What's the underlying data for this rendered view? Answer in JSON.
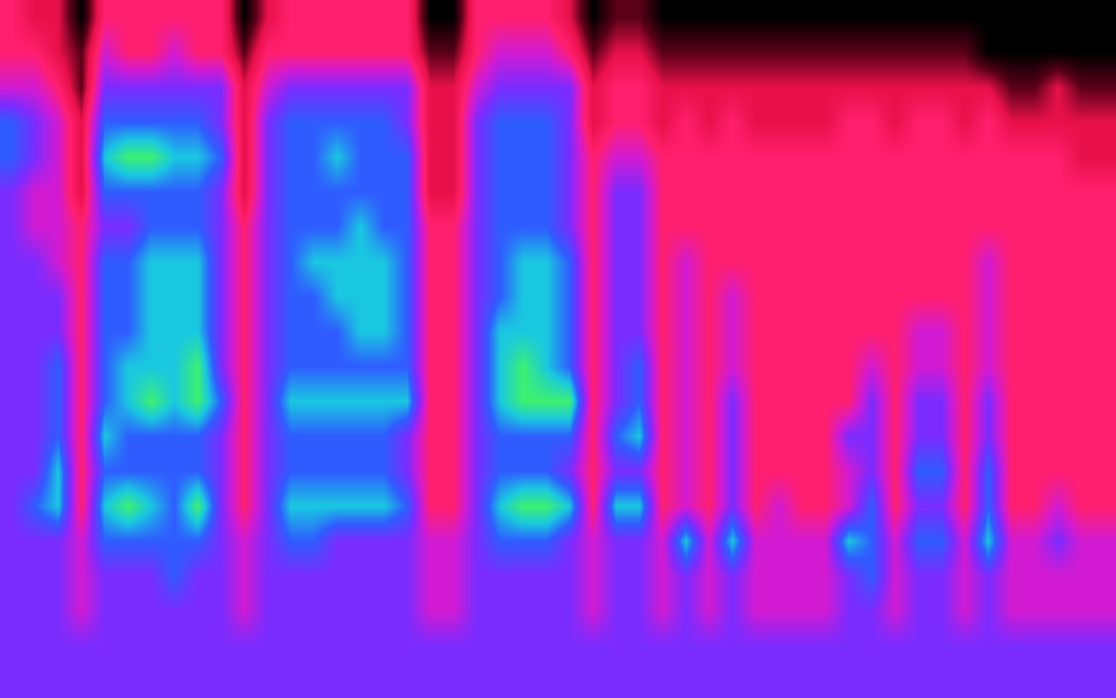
{
  "chart_data": {
    "type": "heatmap",
    "tick_labels": false,
    "grid": false,
    "zlim": [
      0,
      9
    ],
    "z": [
      [
        3,
        3,
        4,
        6,
        6,
        5,
        5,
        5,
        5,
        5,
        5,
        5,
        5,
        5,
        5,
        5,
        5,
        5,
        5,
        5
      ],
      [
        2,
        3,
        4,
        5,
        5,
        4,
        4,
        5,
        5,
        5,
        5,
        5,
        5,
        5,
        6,
        5,
        5,
        5,
        5,
        5
      ],
      [
        2,
        2,
        3,
        4,
        4,
        4,
        4,
        4,
        5,
        5,
        6,
        6,
        6,
        7,
        7,
        5,
        5,
        5,
        5,
        5
      ],
      [
        0,
        1,
        1,
        2,
        2,
        2,
        3,
        3,
        3,
        3,
        3,
        3,
        3,
        3,
        3,
        4,
        4,
        4,
        5,
        5
      ],
      [
        3,
        4,
        5,
        6,
        7,
        6,
        5,
        6,
        6,
        6,
        6,
        6,
        7,
        6,
        7,
        6,
        5,
        5,
        5,
        5
      ],
      [
        3,
        3,
        5,
        6,
        8,
        6,
        5,
        6,
        6,
        6,
        7,
        7,
        6,
        6,
        8,
        6,
        5,
        5,
        5,
        5
      ],
      [
        3,
        3,
        5,
        6,
        8,
        6,
        6,
        7,
        7,
        7,
        7,
        8,
        6,
        6,
        7,
        6,
        5,
        5,
        5,
        5
      ],
      [
        3,
        4,
        5,
        6,
        7,
        6,
        6,
        7,
        7,
        7,
        7,
        7,
        6,
        6,
        6,
        6,
        6,
        5,
        5,
        5
      ],
      [
        3,
        3,
        5,
        6,
        7,
        6,
        6,
        7,
        7,
        7,
        8,
        8,
        6,
        6,
        8,
        6,
        5,
        5,
        5,
        5
      ],
      [
        3,
        3,
        5,
        5,
        6,
        5,
        5,
        5,
        5,
        5,
        5,
        6,
        5,
        5,
        5,
        5,
        5,
        5,
        5,
        5
      ],
      [
        0,
        1,
        2,
        2,
        2,
        2,
        3,
        3,
        3,
        3,
        3,
        3,
        3,
        3,
        3,
        4,
        4,
        4,
        5,
        5
      ],
      [
        2,
        3,
        4,
        5,
        5,
        5,
        5,
        5,
        5,
        5,
        5,
        5,
        5,
        5,
        5,
        5,
        5,
        5,
        5,
        5
      ],
      [
        3,
        3,
        5,
        6,
        6,
        6,
        6,
        6,
        6,
        6,
        6,
        7,
        6,
        6,
        7,
        6,
        5,
        5,
        5,
        5
      ],
      [
        3,
        3,
        5,
        6,
        6,
        6,
        6,
        7,
        6,
        6,
        6,
        7,
        6,
        6,
        7,
        6,
        5,
        5,
        5,
        5
      ],
      [
        3,
        3,
        5,
        6,
        7,
        6,
        6,
        7,
        7,
        6,
        6,
        7,
        6,
        6,
        7,
        5,
        5,
        5,
        5,
        5
      ],
      [
        3,
        3,
        5,
        6,
        6,
        6,
        7,
        7,
        7,
        7,
        6,
        7,
        6,
        6,
        7,
        5,
        5,
        5,
        5,
        5
      ],
      [
        3,
        3,
        5,
        6,
        6,
        6,
        6,
        7,
        7,
        7,
        6,
        7,
        6,
        6,
        7,
        5,
        5,
        5,
        5,
        5
      ],
      [
        3,
        3,
        5,
        5,
        6,
        6,
        6,
        6,
        6,
        6,
        6,
        7,
        5,
        5,
        6,
        5,
        5,
        5,
        5,
        5
      ],
      [
        0,
        1,
        2,
        2,
        2,
        2,
        3,
        3,
        3,
        3,
        3,
        3,
        3,
        3,
        3,
        4,
        4,
        4,
        5,
        5
      ],
      [
        0,
        1,
        2,
        2,
        2,
        2,
        3,
        3,
        3,
        3,
        3,
        3,
        3,
        3,
        3,
        4,
        4,
        4,
        5,
        5
      ],
      [
        3,
        3,
        4,
        5,
        5,
        5,
        5,
        5,
        5,
        5,
        5,
        5,
        5,
        5,
        5,
        5,
        5,
        5,
        5,
        5
      ],
      [
        3,
        4,
        5,
        6,
        6,
        6,
        6,
        6,
        6,
        7,
        7,
        7,
        6,
        6,
        7,
        6,
        5,
        5,
        5,
        5
      ],
      [
        3,
        4,
        5,
        6,
        6,
        6,
        6,
        7,
        7,
        7,
        8,
        8,
        6,
        6,
        8,
        6,
        5,
        5,
        5,
        5
      ],
      [
        3,
        4,
        5,
        6,
        6,
        6,
        6,
        7,
        7,
        7,
        7,
        8,
        6,
        6,
        8,
        6,
        5,
        5,
        5,
        5
      ],
      [
        2,
        3,
        5,
        5,
        5,
        5,
        5,
        6,
        6,
        6,
        6,
        8,
        6,
        5,
        7,
        5,
        5,
        5,
        5,
        5
      ],
      [
        0,
        1,
        2,
        2,
        3,
        3,
        3,
        3,
        3,
        3,
        3,
        3,
        3,
        3,
        3,
        4,
        4,
        4,
        5,
        5
      ],
      [
        1,
        2,
        3,
        3,
        4,
        5,
        5,
        5,
        5,
        5,
        5,
        5,
        6,
        5,
        7,
        5,
        5,
        5,
        5,
        5
      ],
      [
        1,
        2,
        3,
        3,
        4,
        5,
        5,
        5,
        5,
        5,
        6,
        6,
        7,
        5,
        7,
        5,
        5,
        5,
        5,
        5
      ],
      [
        0,
        1,
        2,
        2,
        3,
        3,
        3,
        3,
        3,
        3,
        3,
        3,
        3,
        3,
        3,
        4,
        4,
        4,
        5,
        5
      ],
      [
        0,
        1,
        2,
        3,
        3,
        3,
        3,
        4,
        4,
        4,
        4,
        4,
        4,
        4,
        4,
        7,
        5,
        5,
        5,
        5
      ],
      [
        0,
        1,
        2,
        2,
        3,
        3,
        3,
        3,
        3,
        3,
        3,
        3,
        3,
        3,
        3,
        4,
        4,
        4,
        5,
        5
      ],
      [
        0,
        1,
        2,
        3,
        3,
        3,
        3,
        3,
        4,
        4,
        4,
        5,
        5,
        5,
        5,
        7,
        5,
        5,
        5,
        5
      ],
      [
        0,
        1,
        2,
        2,
        3,
        3,
        3,
        3,
        3,
        3,
        3,
        3,
        3,
        3,
        3,
        4,
        4,
        4,
        5,
        5
      ],
      [
        0,
        1,
        2,
        2,
        3,
        3,
        3,
        3,
        3,
        3,
        3,
        3,
        3,
        3,
        4,
        4,
        4,
        4,
        5,
        5
      ],
      [
        0,
        1,
        2,
        2,
        3,
        3,
        3,
        3,
        3,
        3,
        3,
        3,
        3,
        3,
        3,
        4,
        4,
        4,
        5,
        5
      ],
      [
        0,
        1,
        2,
        2,
        3,
        3,
        3,
        3,
        3,
        3,
        3,
        3,
        3,
        3,
        3,
        4,
        4,
        4,
        5,
        5
      ],
      [
        0,
        1,
        2,
        3,
        3,
        3,
        3,
        3,
        3,
        3,
        3,
        3,
        5,
        4,
        4,
        7,
        5,
        5,
        5,
        5
      ],
      [
        0,
        1,
        2,
        3,
        3,
        3,
        3,
        3,
        3,
        3,
        4,
        5,
        5,
        5,
        6,
        6,
        6,
        5,
        5,
        5
      ],
      [
        0,
        1,
        2,
        2,
        3,
        3,
        3,
        3,
        3,
        3,
        3,
        3,
        3,
        3,
        3,
        4,
        4,
        4,
        5,
        5
      ],
      [
        0,
        1,
        2,
        3,
        3,
        3,
        3,
        3,
        3,
        4,
        4,
        5,
        5,
        6,
        5,
        6,
        5,
        5,
        5,
        5
      ],
      [
        0,
        1,
        2,
        3,
        3,
        3,
        3,
        3,
        3,
        4,
        4,
        5,
        5,
        6,
        5,
        6,
        5,
        5,
        5,
        5
      ],
      [
        0,
        1,
        2,
        2,
        3,
        3,
        3,
        3,
        3,
        3,
        3,
        3,
        3,
        3,
        3,
        4,
        4,
        4,
        5,
        5
      ],
      [
        0,
        0,
        2,
        3,
        3,
        3,
        3,
        4,
        4,
        4,
        4,
        5,
        5,
        6,
        6,
        7,
        5,
        5,
        5,
        5
      ],
      [
        0,
        0,
        1,
        2,
        3,
        3,
        3,
        3,
        3,
        3,
        3,
        3,
        3,
        3,
        3,
        4,
        4,
        4,
        5,
        5
      ],
      [
        0,
        0,
        1,
        2,
        3,
        3,
        3,
        3,
        3,
        3,
        3,
        3,
        3,
        3,
        3,
        4,
        4,
        4,
        5,
        5
      ],
      [
        0,
        0,
        2,
        2,
        3,
        3,
        3,
        3,
        3,
        3,
        3,
        3,
        3,
        3,
        4,
        5,
        4,
        4,
        5,
        5
      ],
      [
        0,
        0,
        1,
        2,
        2,
        3,
        3,
        3,
        3,
        3,
        3,
        3,
        3,
        3,
        3,
        4,
        4,
        4,
        5,
        5
      ],
      [
        0,
        0,
        1,
        2,
        2,
        3,
        3,
        3,
        3,
        3,
        3,
        3,
        3,
        3,
        3,
        4,
        4,
        4,
        5,
        5
      ]
    ]
  }
}
